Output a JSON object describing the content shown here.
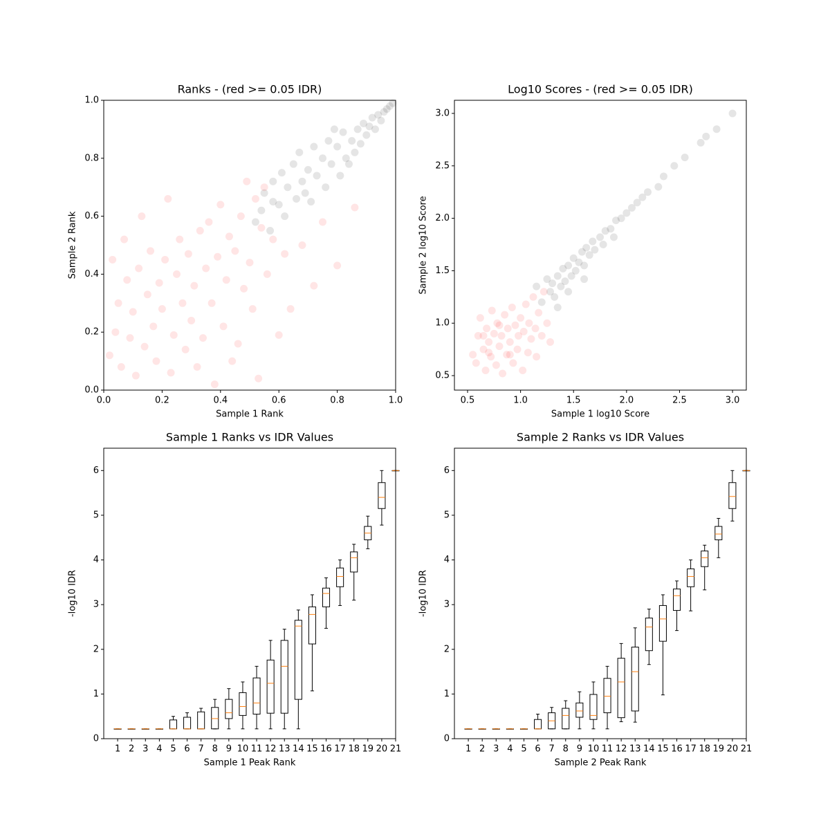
{
  "chart_data": [
    {
      "type": "scatter",
      "title": "Ranks - (red >= 0.05 IDR)",
      "x_label": "Sample 1 Rank",
      "y_label": "Sample 2 Rank",
      "xlim": [
        0,
        1
      ],
      "ylim": [
        0,
        1
      ],
      "xticks": [
        {
          "value": 0,
          "label": "0.0"
        },
        {
          "value": 0.2,
          "label": "0.2"
        },
        {
          "value": 0.4,
          "label": "0.4"
        },
        {
          "value": 0.6,
          "label": "0.6"
        },
        {
          "value": 0.8,
          "label": "0.8"
        },
        {
          "value": 1,
          "label": "1.0"
        }
      ],
      "yticks": [
        {
          "value": 0,
          "label": "0.0"
        },
        {
          "value": 0.2,
          "label": "0.2"
        },
        {
          "value": 0.4,
          "label": "0.4"
        },
        {
          "value": 0.6,
          "label": "0.6"
        },
        {
          "value": 0.8,
          "label": "0.8"
        },
        {
          "value": 1,
          "label": "1.0"
        }
      ],
      "alpha": 0.1,
      "series": [
        {
          "color": "#ff0000",
          "x": [
            0.02,
            0.03,
            0.04,
            0.05,
            0.06,
            0.07,
            0.08,
            0.09,
            0.1,
            0.11,
            0.12,
            0.13,
            0.14,
            0.15,
            0.16,
            0.17,
            0.18,
            0.19,
            0.2,
            0.21,
            0.22,
            0.23,
            0.24,
            0.25,
            0.26,
            0.27,
            0.28,
            0.29,
            0.3,
            0.31,
            0.32,
            0.33,
            0.34,
            0.35,
            0.36,
            0.37,
            0.38,
            0.39,
            0.4,
            0.41,
            0.42,
            0.43,
            0.44,
            0.45,
            0.46,
            0.47,
            0.48,
            0.49,
            0.5,
            0.51,
            0.52,
            0.53,
            0.54,
            0.55,
            0.56,
            0.58,
            0.6,
            0.62,
            0.64,
            0.68,
            0.72,
            0.75,
            0.8,
            0.86
          ],
          "values": [
            0.12,
            0.45,
            0.2,
            0.3,
            0.08,
            0.52,
            0.38,
            0.18,
            0.27,
            0.05,
            0.42,
            0.6,
            0.15,
            0.33,
            0.48,
            0.22,
            0.1,
            0.37,
            0.28,
            0.45,
            0.66,
            0.06,
            0.19,
            0.4,
            0.52,
            0.3,
            0.14,
            0.47,
            0.24,
            0.36,
            0.08,
            0.55,
            0.18,
            0.42,
            0.58,
            0.3,
            0.02,
            0.46,
            0.64,
            0.22,
            0.38,
            0.53,
            0.1,
            0.48,
            0.16,
            0.6,
            0.35,
            0.72,
            0.44,
            0.28,
            0.66,
            0.04,
            0.56,
            0.7,
            0.4,
            0.52,
            0.19,
            0.47,
            0.28,
            0.5,
            0.36,
            0.58,
            0.43,
            0.63
          ]
        },
        {
          "color": "#000000",
          "x": [
            0.52,
            0.54,
            0.55,
            0.57,
            0.58,
            0.6,
            0.61,
            0.62,
            0.63,
            0.65,
            0.66,
            0.67,
            0.68,
            0.7,
            0.71,
            0.72,
            0.73,
            0.75,
            0.76,
            0.77,
            0.78,
            0.8,
            0.81,
            0.82,
            0.83,
            0.85,
            0.86,
            0.87,
            0.88,
            0.89,
            0.9,
            0.91,
            0.92,
            0.93,
            0.94,
            0.95,
            0.96,
            0.97,
            0.98,
            0.99,
            0.58,
            0.69,
            0.79,
            0.84
          ],
          "values": [
            0.58,
            0.62,
            0.68,
            0.55,
            0.72,
            0.64,
            0.75,
            0.6,
            0.7,
            0.78,
            0.66,
            0.82,
            0.72,
            0.76,
            0.65,
            0.84,
            0.74,
            0.8,
            0.7,
            0.86,
            0.78,
            0.84,
            0.74,
            0.89,
            0.8,
            0.86,
            0.82,
            0.9,
            0.85,
            0.92,
            0.88,
            0.91,
            0.94,
            0.9,
            0.95,
            0.93,
            0.96,
            0.97,
            0.98,
            0.99,
            0.65,
            0.68,
            0.9,
            0.78
          ]
        }
      ]
    },
    {
      "type": "scatter",
      "title": "Log10 Scores - (red >= 0.05 IDR)",
      "x_label": "Sample 1 log10 Score",
      "y_label": "Sample 2 log10 Score",
      "xlim": [
        0.376,
        3.13
      ],
      "ylim": [
        0.362,
        3.125
      ],
      "xticks": [
        0.5,
        {
          "value": 1,
          "label": "1.0"
        },
        1.5,
        {
          "value": 2,
          "label": "2.0"
        },
        2.5,
        {
          "value": 3,
          "label": "3.0"
        }
      ],
      "yticks": [
        0.5,
        {
          "value": 1,
          "label": "1.0"
        },
        1.5,
        {
          "value": 2,
          "label": "2.0"
        },
        2.5,
        {
          "value": 3,
          "label": "3.0"
        }
      ],
      "alpha": 0.1,
      "series": [
        {
          "color": "#ff0000",
          "x": [
            0.55,
            0.58,
            0.6,
            0.62,
            0.65,
            0.67,
            0.68,
            0.7,
            0.72,
            0.73,
            0.75,
            0.77,
            0.78,
            0.8,
            0.82,
            0.83,
            0.85,
            0.87,
            0.88,
            0.9,
            0.92,
            0.93,
            0.95,
            0.97,
            0.98,
            1.0,
            1.02,
            1.03,
            1.05,
            1.07,
            1.08,
            1.1,
            1.12,
            1.14,
            1.15,
            1.17,
            1.2,
            1.22,
            1.25,
            1.28,
            0.7,
            0.8,
            0.9,
            0.65
          ],
          "values": [
            0.7,
            0.62,
            0.88,
            1.05,
            0.75,
            0.55,
            0.95,
            0.82,
            0.68,
            1.12,
            0.9,
            0.6,
            1.0,
            0.78,
            0.88,
            0.52,
            1.08,
            0.7,
            0.95,
            0.82,
            1.15,
            0.62,
            0.98,
            0.75,
            0.88,
            1.05,
            0.55,
            0.92,
            1.18,
            0.72,
            1.0,
            0.85,
            1.25,
            0.95,
            0.68,
            1.1,
            0.88,
            1.3,
            1.0,
            0.82,
            0.72,
            0.98,
            0.7,
            0.88
          ]
        },
        {
          "color": "#000000",
          "x": [
            1.15,
            1.2,
            1.25,
            1.28,
            1.3,
            1.32,
            1.35,
            1.38,
            1.4,
            1.42,
            1.45,
            1.48,
            1.5,
            1.52,
            1.55,
            1.58,
            1.6,
            1.62,
            1.65,
            1.68,
            1.7,
            1.75,
            1.78,
            1.8,
            1.85,
            1.88,
            1.9,
            1.95,
            2.0,
            2.05,
            2.1,
            2.15,
            2.2,
            2.3,
            2.35,
            2.45,
            2.55,
            2.7,
            2.75,
            2.85,
            3.0,
            1.35,
            1.45,
            1.6
          ],
          "values": [
            1.35,
            1.2,
            1.42,
            1.3,
            1.38,
            1.25,
            1.45,
            1.35,
            1.52,
            1.4,
            1.55,
            1.45,
            1.62,
            1.5,
            1.58,
            1.68,
            1.55,
            1.72,
            1.65,
            1.78,
            1.7,
            1.82,
            1.75,
            1.88,
            1.9,
            1.82,
            1.98,
            2.0,
            2.05,
            2.1,
            2.15,
            2.2,
            2.25,
            2.3,
            2.4,
            2.5,
            2.58,
            2.72,
            2.78,
            2.85,
            3.0,
            1.15,
            1.3,
            1.42
          ]
        }
      ]
    },
    {
      "type": "box",
      "title": "Sample 1 Ranks vs IDR Values",
      "x_label": "Sample 1 Peak Rank",
      "y_label": "-log10 IDR",
      "categories": [
        "1",
        "2",
        "3",
        "4",
        "5",
        "6",
        "7",
        "8",
        "9",
        "10",
        "11",
        "12",
        "13",
        "14",
        "15",
        "16",
        "17",
        "18",
        "19",
        "20",
        "21"
      ],
      "xlim": [
        0,
        21
      ],
      "ylim": [
        0,
        6.5
      ],
      "yticks": [
        0,
        1,
        2,
        3,
        4,
        5,
        6
      ],
      "box_color": "#000000",
      "median_color": "#ff7f0e",
      "whislo": [
        0.22,
        0.22,
        0.22,
        0.22,
        0.22,
        0.22,
        0.22,
        0.22,
        0.22,
        0.22,
        0.22,
        0.22,
        0.22,
        0.22,
        1.07,
        2.47,
        2.98,
        3.1,
        4.25,
        4.78,
        6
      ],
      "q1": [
        0.22,
        0.22,
        0.22,
        0.22,
        0.22,
        0.22,
        0.22,
        0.22,
        0.45,
        0.52,
        0.55,
        0.57,
        0.57,
        0.88,
        2.12,
        2.95,
        3.4,
        3.73,
        4.45,
        5.15,
        6
      ],
      "med": [
        0.22,
        0.22,
        0.22,
        0.22,
        0.22,
        0.22,
        0.22,
        0.45,
        0.58,
        0.72,
        0.8,
        1.24,
        1.62,
        2.52,
        2.78,
        3.25,
        3.63,
        4.05,
        4.6,
        5.4,
        6
      ],
      "q3": [
        0.22,
        0.22,
        0.22,
        0.22,
        0.42,
        0.48,
        0.6,
        0.7,
        0.88,
        1.03,
        1.36,
        1.76,
        2.2,
        2.65,
        2.95,
        3.37,
        3.82,
        4.18,
        4.75,
        5.73,
        6
      ],
      "whishi": [
        0.22,
        0.22,
        0.22,
        0.22,
        0.5,
        0.58,
        0.68,
        0.88,
        1.12,
        1.27,
        1.62,
        2.2,
        2.45,
        2.88,
        3.22,
        3.6,
        4.0,
        4.35,
        4.98,
        6.0,
        6
      ]
    },
    {
      "type": "box",
      "title": "Sample 2 Ranks vs IDR Values",
      "x_label": "Sample 2 Peak Rank",
      "y_label": "-log10 IDR",
      "categories": [
        "1",
        "2",
        "3",
        "4",
        "5",
        "6",
        "7",
        "8",
        "9",
        "10",
        "11",
        "12",
        "13",
        "14",
        "15",
        "16",
        "17",
        "18",
        "19",
        "20",
        "21"
      ],
      "xlim": [
        0,
        21
      ],
      "ylim": [
        0,
        6.5
      ],
      "yticks": [
        0,
        1,
        2,
        3,
        4,
        5,
        6
      ],
      "box_color": "#000000",
      "median_color": "#ff7f0e",
      "whislo": [
        0.22,
        0.22,
        0.22,
        0.22,
        0.22,
        0.22,
        0.22,
        0.22,
        0.22,
        0.22,
        0.22,
        0.38,
        0.37,
        1.66,
        0.98,
        2.42,
        2.86,
        3.33,
        4.05,
        4.87,
        6
      ],
      "q1": [
        0.22,
        0.22,
        0.22,
        0.22,
        0.22,
        0.22,
        0.22,
        0.22,
        0.48,
        0.43,
        0.58,
        0.47,
        0.62,
        1.97,
        2.18,
        2.87,
        3.4,
        3.85,
        4.45,
        5.15,
        6
      ],
      "med": [
        0.22,
        0.22,
        0.22,
        0.22,
        0.22,
        0.22,
        0.4,
        0.52,
        0.62,
        0.52,
        0.95,
        1.27,
        1.5,
        2.5,
        2.68,
        3.2,
        3.63,
        4.05,
        4.58,
        5.42,
        6
      ],
      "q3": [
        0.22,
        0.22,
        0.22,
        0.22,
        0.22,
        0.43,
        0.58,
        0.68,
        0.8,
        0.99,
        1.35,
        1.8,
        2.05,
        2.7,
        2.98,
        3.35,
        3.8,
        4.2,
        4.75,
        5.73,
        6
      ],
      "whishi": [
        0.22,
        0.22,
        0.22,
        0.22,
        0.22,
        0.55,
        0.7,
        0.85,
        1.05,
        1.27,
        1.62,
        2.13,
        2.48,
        2.9,
        3.22,
        3.53,
        4.0,
        4.33,
        4.93,
        6.0,
        6
      ]
    }
  ]
}
